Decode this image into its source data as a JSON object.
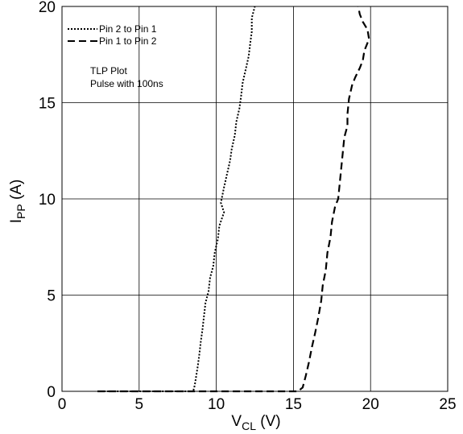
{
  "chart_data": {
    "type": "line",
    "xlabel": {
      "main": "V",
      "sub": "CL",
      "unit": " (V)"
    },
    "ylabel": {
      "main": "I",
      "sub": "PP",
      "unit": " (A)"
    },
    "xlim": [
      0,
      25
    ],
    "ylim": [
      0,
      20
    ],
    "xticks": [
      0,
      5,
      10,
      15,
      20,
      25
    ],
    "yticks": [
      0,
      5,
      10,
      15,
      20
    ],
    "grid": true,
    "legend_position": "top-left",
    "annotation": [
      "TLP Plot",
      "Pulse with 100ns"
    ],
    "series": [
      {
        "name": "Pin 2 to Pin 1",
        "style": "dotted",
        "color": "#000000",
        "points": [
          [
            2.3,
            0
          ],
          [
            8.5,
            0
          ],
          [
            8.6,
            0.3
          ],
          [
            8.7,
            0.8
          ],
          [
            8.8,
            1.3
          ],
          [
            8.9,
            1.9
          ],
          [
            9.0,
            2.6
          ],
          [
            9.1,
            3.2
          ],
          [
            9.2,
            3.9
          ],
          [
            9.3,
            4.6
          ],
          [
            9.5,
            5.2
          ],
          [
            9.6,
            5.9
          ],
          [
            9.8,
            6.5
          ],
          [
            9.9,
            7.2
          ],
          [
            10.1,
            7.9
          ],
          [
            10.2,
            8.6
          ],
          [
            10.5,
            9.3
          ],
          [
            10.3,
            9.8
          ],
          [
            10.5,
            10.6
          ],
          [
            10.7,
            11.3
          ],
          [
            10.9,
            12.0
          ],
          [
            11.0,
            12.6
          ],
          [
            11.2,
            13.3
          ],
          [
            11.3,
            14.0
          ],
          [
            11.5,
            14.7
          ],
          [
            11.6,
            15.3
          ],
          [
            11.7,
            16.0
          ],
          [
            11.9,
            16.7
          ],
          [
            12.1,
            17.4
          ],
          [
            12.2,
            18.1
          ],
          [
            12.3,
            18.7
          ],
          [
            12.3,
            19.4
          ],
          [
            12.5,
            20.0
          ]
        ]
      },
      {
        "name": "Pin 1 to Pin 2",
        "style": "dashed",
        "color": "#000000",
        "points": [
          [
            2.3,
            0
          ],
          [
            15.3,
            0
          ],
          [
            15.6,
            0.2
          ],
          [
            15.8,
            0.8
          ],
          [
            16.0,
            1.5
          ],
          [
            16.2,
            2.3
          ],
          [
            16.4,
            3.0
          ],
          [
            16.6,
            3.8
          ],
          [
            16.8,
            4.7
          ],
          [
            16.9,
            5.5
          ],
          [
            17.1,
            6.3
          ],
          [
            17.2,
            7.2
          ],
          [
            17.4,
            8.0
          ],
          [
            17.5,
            8.8
          ],
          [
            17.7,
            9.6
          ],
          [
            17.9,
            10.0
          ],
          [
            18.0,
            10.8
          ],
          [
            18.1,
            11.6
          ],
          [
            18.2,
            12.4
          ],
          [
            18.3,
            13.2
          ],
          [
            18.5,
            13.8
          ],
          [
            18.5,
            14.4
          ],
          [
            18.6,
            15.2
          ],
          [
            18.8,
            15.9
          ],
          [
            19.0,
            16.3
          ],
          [
            19.3,
            16.8
          ],
          [
            19.5,
            17.2
          ],
          [
            19.6,
            17.7
          ],
          [
            19.9,
            18.3
          ],
          [
            19.8,
            18.8
          ],
          [
            19.5,
            19.2
          ],
          [
            19.3,
            19.6
          ],
          [
            19.2,
            20.0
          ]
        ]
      }
    ]
  }
}
